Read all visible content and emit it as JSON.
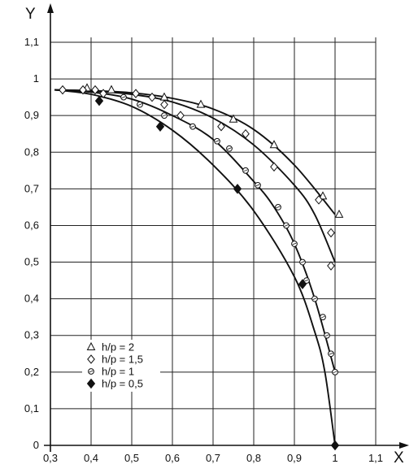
{
  "chart_data": {
    "type": "scatter",
    "title": "",
    "xlabel": "X",
    "ylabel": "Y",
    "xlim": [
      0.3,
      1.1
    ],
    "ylim": [
      0,
      1.1
    ],
    "x_ticks": [
      "0,3",
      "0,4",
      "0,5",
      "0,6",
      "0,7",
      "0,8",
      "0,9",
      "1",
      "1,1"
    ],
    "y_ticks": [
      "0",
      "0,1",
      "0,2",
      "0,3",
      "0,4",
      "0,5",
      "0,6",
      "0,7",
      "0,8",
      "0,9",
      "1",
      "1,1"
    ],
    "grid": true,
    "legend_position": "bottom-left",
    "series": [
      {
        "name": "h/p = 2",
        "marker": "triangle",
        "points": [
          [
            0.39,
            0.975
          ],
          [
            0.45,
            0.97
          ],
          [
            0.58,
            0.95
          ],
          [
            0.67,
            0.93
          ],
          [
            0.75,
            0.89
          ],
          [
            0.85,
            0.82
          ],
          [
            0.97,
            0.68
          ],
          [
            1.01,
            0.63
          ]
        ]
      },
      {
        "name": "h/p = 1,5",
        "marker": "diamond",
        "points": [
          [
            0.33,
            0.97
          ],
          [
            0.38,
            0.97
          ],
          [
            0.41,
            0.97
          ],
          [
            0.43,
            0.96
          ],
          [
            0.51,
            0.96
          ],
          [
            0.55,
            0.95
          ],
          [
            0.58,
            0.93
          ],
          [
            0.62,
            0.9
          ],
          [
            0.72,
            0.87
          ],
          [
            0.78,
            0.85
          ],
          [
            0.85,
            0.76
          ],
          [
            0.96,
            0.67
          ],
          [
            0.99,
            0.58
          ],
          [
            0.99,
            0.49
          ]
        ]
      },
      {
        "name": "h/p = 1",
        "marker": "circle",
        "points": [
          [
            0.48,
            0.95
          ],
          [
            0.52,
            0.93
          ],
          [
            0.58,
            0.9
          ],
          [
            0.65,
            0.87
          ],
          [
            0.71,
            0.83
          ],
          [
            0.74,
            0.81
          ],
          [
            0.78,
            0.75
          ],
          [
            0.81,
            0.71
          ],
          [
            0.86,
            0.65
          ],
          [
            0.88,
            0.6
          ],
          [
            0.9,
            0.55
          ],
          [
            0.92,
            0.5
          ],
          [
            0.93,
            0.45
          ],
          [
            0.95,
            0.4
          ],
          [
            0.97,
            0.35
          ],
          [
            0.98,
            0.3
          ],
          [
            0.99,
            0.25
          ],
          [
            1.0,
            0.2
          ]
        ]
      },
      {
        "name": "h/p = 0,5",
        "marker": "filled-diamond",
        "points": [
          [
            0.42,
            0.94
          ],
          [
            0.57,
            0.87
          ],
          [
            0.76,
            0.7
          ],
          [
            0.92,
            0.44
          ],
          [
            1.0,
            0.0
          ]
        ]
      }
    ],
    "curves": [
      {
        "series": "h/p = 2",
        "points": [
          [
            0.31,
            0.97
          ],
          [
            0.4,
            0.968
          ],
          [
            0.5,
            0.962
          ],
          [
            0.6,
            0.947
          ],
          [
            0.7,
            0.918
          ],
          [
            0.8,
            0.862
          ],
          [
            0.9,
            0.765
          ],
          [
            1.0,
            0.63
          ]
        ]
      },
      {
        "series": "h/p = 1,5",
        "points": [
          [
            0.31,
            0.97
          ],
          [
            0.4,
            0.967
          ],
          [
            0.5,
            0.958
          ],
          [
            0.6,
            0.937
          ],
          [
            0.7,
            0.893
          ],
          [
            0.8,
            0.82
          ],
          [
            0.9,
            0.71
          ],
          [
            0.95,
            0.63
          ],
          [
            1.0,
            0.5
          ]
        ]
      },
      {
        "series": "h/p = 1",
        "points": [
          [
            0.31,
            0.97
          ],
          [
            0.4,
            0.964
          ],
          [
            0.5,
            0.945
          ],
          [
            0.6,
            0.9
          ],
          [
            0.7,
            0.835
          ],
          [
            0.8,
            0.72
          ],
          [
            0.85,
            0.65
          ],
          [
            0.9,
            0.55
          ],
          [
            0.95,
            0.4
          ],
          [
            1.0,
            0.2
          ]
        ]
      },
      {
        "series": "h/p = 0,5",
        "points": [
          [
            0.31,
            0.97
          ],
          [
            0.4,
            0.958
          ],
          [
            0.5,
            0.925
          ],
          [
            0.6,
            0.86
          ],
          [
            0.7,
            0.765
          ],
          [
            0.8,
            0.64
          ],
          [
            0.9,
            0.46
          ],
          [
            0.95,
            0.31
          ],
          [
            0.975,
            0.2
          ],
          [
            1.0,
            0.0
          ]
        ]
      }
    ]
  }
}
